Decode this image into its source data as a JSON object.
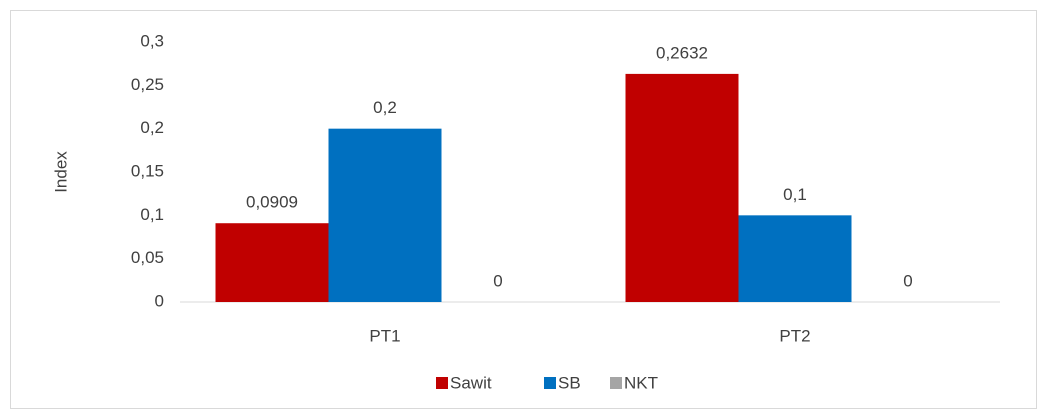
{
  "chart_data": {
    "type": "bar",
    "y_label": "Index",
    "categories": [
      "PT1",
      "PT2"
    ],
    "series": [
      {
        "name": "Sawit",
        "color": "#c00000",
        "values": [
          0.0909,
          0.2632
        ],
        "value_labels": [
          "0,0909",
          "0,2632"
        ]
      },
      {
        "name": "SB",
        "color": "#0070c0",
        "values": [
          0.2,
          0.1
        ],
        "value_labels": [
          "0,2",
          "0,1"
        ]
      },
      {
        "name": "NKT",
        "color": "#a5a5a5",
        "values": [
          0,
          0
        ]
      }
    ],
    "ylim": [
      0,
      0.3
    ],
    "yticks": [
      0,
      {
        "value": 0.05,
        "label": "0,05"
      },
      {
        "value": 0.1,
        "label": "0,1"
      },
      {
        "value": 0.15,
        "label": "0,15"
      },
      {
        "value": 0.2,
        "label": "0,2"
      },
      {
        "value": 0.25,
        "label": "0,25"
      },
      {
        "value": 0.3,
        "label": "0,3"
      }
    ],
    "grid": false,
    "legend": "bottom"
  }
}
